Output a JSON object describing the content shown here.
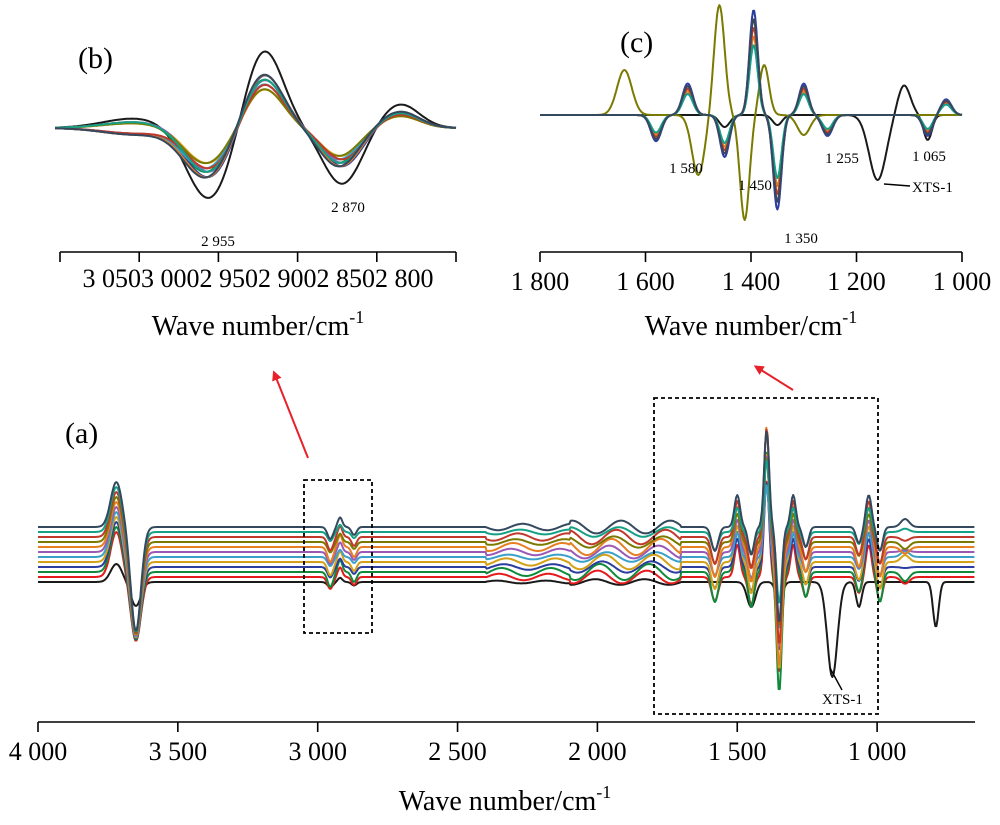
{
  "chart_data": [
    {
      "panel": "(a)",
      "type": "line",
      "xlabel": "Wave number/cm",
      "xlabel_sup": "-1",
      "xlim": [
        4000,
        650
      ],
      "x_reversed": true,
      "ticks": [
        {
          "value": 4000,
          "label": "4 000"
        },
        {
          "value": 3500,
          "label": "3 500"
        },
        {
          "value": 3000,
          "label": "3 000"
        },
        {
          "value": 2500,
          "label": "2 500"
        },
        {
          "value": 2000,
          "label": "2 000"
        },
        {
          "value": 1500,
          "label": "1 500"
        },
        {
          "value": 1000,
          "label": "1 000"
        }
      ],
      "series_count": 12,
      "highlight_series": "XTS-1",
      "zoom_regions": [
        [
          3050,
          2800
        ],
        [
          1800,
          1000
        ]
      ],
      "annotations": [
        {
          "text": "XTS-1",
          "x": 1160
        }
      ]
    },
    {
      "panel": "(b)",
      "type": "line",
      "xlabel": "Wave number/cm",
      "xlabel_sup": "-1",
      "xlim": [
        3050,
        2800
      ],
      "x_reversed": true,
      "ticks": [
        {
          "value": 3050,
          "label": "3 050"
        },
        {
          "value": 3000,
          "label": "3 000"
        },
        {
          "value": 2950,
          "label": "2 950"
        },
        {
          "value": 2900,
          "label": "2 900"
        },
        {
          "value": 2850,
          "label": "2 850"
        },
        {
          "value": 2800,
          "label": "2 800"
        }
      ],
      "tick_text": "3 0503 0002 9502 9002 8502 800",
      "annotations": [
        {
          "text": "2 955",
          "x": 2955
        },
        {
          "text": "2 870",
          "x": 2870
        }
      ],
      "bands": [
        {
          "position": 2955,
          "kind": "trough"
        },
        {
          "position": 2870,
          "kind": "trough"
        }
      ]
    },
    {
      "panel": "(c)",
      "type": "line",
      "xlabel": "Wave number/cm",
      "xlabel_sup": "-1",
      "xlim": [
        1800,
        1000
      ],
      "x_reversed": true,
      "ticks": [
        {
          "value": 1800,
          "label": "1 800"
        },
        {
          "value": 1600,
          "label": "1 600"
        },
        {
          "value": 1400,
          "label": "1 400"
        },
        {
          "value": 1200,
          "label": "1 200"
        },
        {
          "value": 1000,
          "label": "1 000"
        }
      ],
      "annotations": [
        {
          "text": "1 580",
          "x": 1580
        },
        {
          "text": "1 450",
          "x": 1450
        },
        {
          "text": "1 350",
          "x": 1350
        },
        {
          "text": "1 255",
          "x": 1255
        },
        {
          "text": "1 065",
          "x": 1065
        },
        {
          "text": "XTS-1",
          "x": 1150
        }
      ],
      "bands": [
        {
          "position": 1580,
          "kind": "trough"
        },
        {
          "position": 1450,
          "kind": "trough"
        },
        {
          "position": 1350,
          "kind": "trough"
        },
        {
          "position": 1255,
          "kind": "trough"
        },
        {
          "position": 1065,
          "kind": "trough"
        }
      ]
    }
  ],
  "colors": {
    "palette": [
      "#1a1a1a",
      "#e41a1c",
      "#0e8a3a",
      "#2b3d9e",
      "#d4a017",
      "#3aa0c8",
      "#9b59b6",
      "#e67e22",
      "#7a7a00",
      "#c0392b",
      "#16a085",
      "#34495e"
    ],
    "arrow": "#e8202a",
    "highlight": "#1a1a1a"
  }
}
